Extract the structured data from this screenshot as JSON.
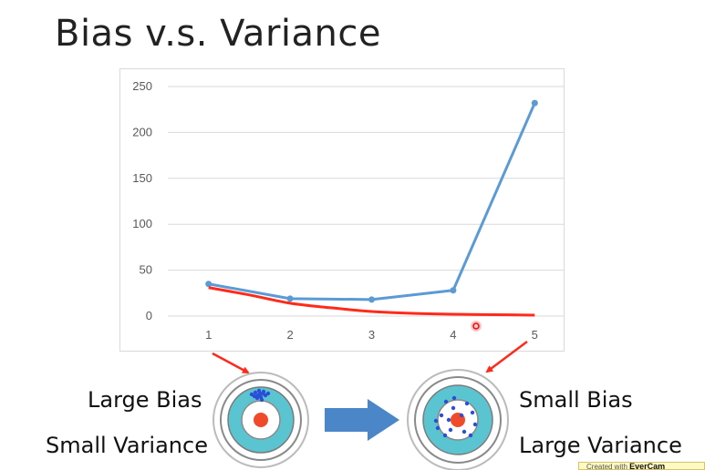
{
  "slide": {
    "title": "Bias v.s. Variance"
  },
  "chart_data": {
    "type": "line",
    "x": [
      1,
      2,
      3,
      4,
      5
    ],
    "xlim": [
      0.5,
      5.5
    ],
    "ylim": [
      0,
      250
    ],
    "yticks": [
      0,
      50,
      100,
      150,
      200,
      250
    ],
    "grid": true,
    "series": [
      {
        "color": "#5b9bd5",
        "markers": true,
        "values": [
          35,
          19,
          18,
          28,
          232
        ]
      },
      {
        "color": "#ff2a1a",
        "markers": false,
        "x": [
          1,
          1.5,
          2,
          2.5,
          3,
          3.5,
          4,
          4.5,
          5
        ],
        "values": [
          31,
          23,
          14,
          9,
          5,
          3,
          2,
          1.5,
          1
        ]
      }
    ]
  },
  "targets": {
    "left": {
      "line1": "Large Bias",
      "line2": "Small Variance"
    },
    "right": {
      "line1": "Small Bias",
      "line2": "Large Variance"
    }
  },
  "colors": {
    "arrow": "#ff2a1a",
    "big_arrow": "#4a86c8",
    "ring_teal": "#5bc4d1",
    "bullseye": "#f04a2a",
    "dots": "#2a4fd6"
  },
  "watermark": {
    "prefix": "Created with",
    "brand": "EverCam"
  }
}
